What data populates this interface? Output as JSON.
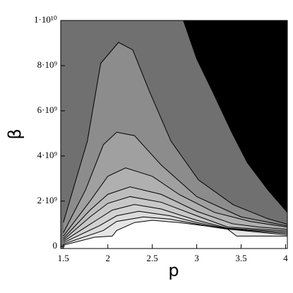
{
  "chart_data": {
    "type": "contour",
    "xlabel": "p",
    "ylabel": "β",
    "background": "#707070",
    "xlim": [
      1.47,
      4.02
    ],
    "ylim": [
      -100000000.0,
      10000000000.0
    ],
    "xticks": [
      1.5,
      2,
      2.5,
      3,
      3.5,
      4
    ],
    "yticks": [
      0,
      {
        "value": 2000000000.0,
        "label": "2·10⁹"
      },
      {
        "value": 4000000000.0,
        "label": "4·10⁹"
      },
      {
        "value": 6000000000.0,
        "label": "6·10⁹"
      },
      {
        "value": 8000000000.0,
        "label": "8·10⁹"
      },
      {
        "value": 10000000000.0,
        "label": "1·10¹⁰"
      }
    ],
    "series": [
      {
        "color": "#000000",
        "fill_to": "top-right",
        "x": [
          2.85,
          3.0,
          3.18,
          3.4,
          3.57,
          3.8,
          4.02
        ],
        "values": [
          10000000000.0,
          8300000000.0,
          6840000000.0,
          5000000000.0,
          3700000000.0,
          2500000000.0,
          1500000000.0
        ]
      },
      {
        "color": "#8c8c8c",
        "fill_to": "bottom",
        "x": [
          1.5,
          1.77,
          1.92,
          2.12,
          2.28,
          2.47,
          2.71,
          3.02,
          3.41,
          3.8,
          4.02
        ],
        "values": [
          1060000000.0,
          4660000000.0,
          8100000000.0,
          9030000000.0,
          8700000000.0,
          6840000000.0,
          4660000000.0,
          2940000000.0,
          1840000000.0,
          1220000000.0,
          970000000.0
        ]
      },
      {
        "color": "#a0a0a0",
        "fill_to": "bottom",
        "x": [
          1.5,
          1.75,
          1.95,
          2.1,
          2.3,
          2.6,
          3.0,
          3.5,
          4.02
        ],
        "values": [
          600000000.0,
          2500000000.0,
          4500000000.0,
          5050000000.0,
          4900000000.0,
          3600000000.0,
          2200000000.0,
          1300000000.0,
          900000000.0
        ]
      },
      {
        "color": "#b0b0b0",
        "fill_to": "bottom",
        "x": [
          1.5,
          1.8,
          2.0,
          2.2,
          2.5,
          2.8,
          3.2,
          3.6,
          4.02
        ],
        "values": [
          450000000.0,
          2000000000.0,
          3100000000.0,
          3470000000.0,
          3100000000.0,
          2300000000.0,
          1500000000.0,
          1100000000.0,
          850000000.0
        ]
      },
      {
        "color": "#bdbdbd",
        "fill_to": "bottom",
        "x": [
          1.5,
          1.8,
          2.0,
          2.25,
          2.6,
          3.0,
          3.4,
          3.7,
          4.02
        ],
        "values": [
          350000000.0,
          1600000000.0,
          2300000000.0,
          2630000000.0,
          2300000000.0,
          1550000000.0,
          1000000000.0,
          850000000.0,
          750000000.0
        ]
      },
      {
        "color": "#c8c8c8",
        "fill_to": "bottom",
        "x": [
          1.5,
          1.8,
          2.0,
          2.25,
          2.6,
          3.0,
          3.35,
          4.02
        ],
        "values": [
          280000000.0,
          1300000000.0,
          1900000000.0,
          2200000000.0,
          1950000000.0,
          1350000000.0,
          850000000.0,
          680000000.0
        ]
      },
      {
        "color": "#d2d2d2",
        "fill_to": "bottom",
        "x": [
          1.5,
          1.85,
          2.05,
          2.3,
          2.6,
          3.0,
          3.35,
          4.02
        ],
        "values": [
          220000000.0,
          1100000000.0,
          1600000000.0,
          1850000000.0,
          1650000000.0,
          1150000000.0,
          800000000.0,
          620000000.0
        ]
      },
      {
        "color": "#dcdcdc",
        "fill_to": "bottom",
        "x": [
          1.5,
          1.9,
          2.1,
          2.35,
          2.7,
          3.0,
          3.35,
          4.02
        ],
        "values": [
          160000000.0,
          900000000.0,
          1350000000.0,
          1550000000.0,
          1350000000.0,
          1050000000.0,
          780000000.0,
          560000000.0
        ]
      },
      {
        "color": "#e6e6e6",
        "fill_to": "bottom",
        "x": [
          1.5,
          1.95,
          2.1,
          2.4,
          2.7,
          3.05,
          3.35,
          4.02
        ],
        "values": [
          100000000.0,
          700000000.0,
          1100000000.0,
          1300000000.0,
          1200000000.0,
          950000000.0,
          760000000.0,
          500000000.0
        ]
      },
      {
        "color": "#ffffff",
        "fill_to": "bottom",
        "x": [
          1.5,
          1.85,
          2.05,
          2.1,
          2.3,
          2.5,
          2.8,
          3.1,
          3.35,
          3.45,
          4.02
        ],
        "values": [
          50000000.0,
          400000000.0,
          450000000.0,
          700000000.0,
          1050000000.0,
          1150000000.0,
          1050000000.0,
          900000000.0,
          750000000.0,
          450000000.0,
          450000000.0
        ]
      }
    ]
  }
}
